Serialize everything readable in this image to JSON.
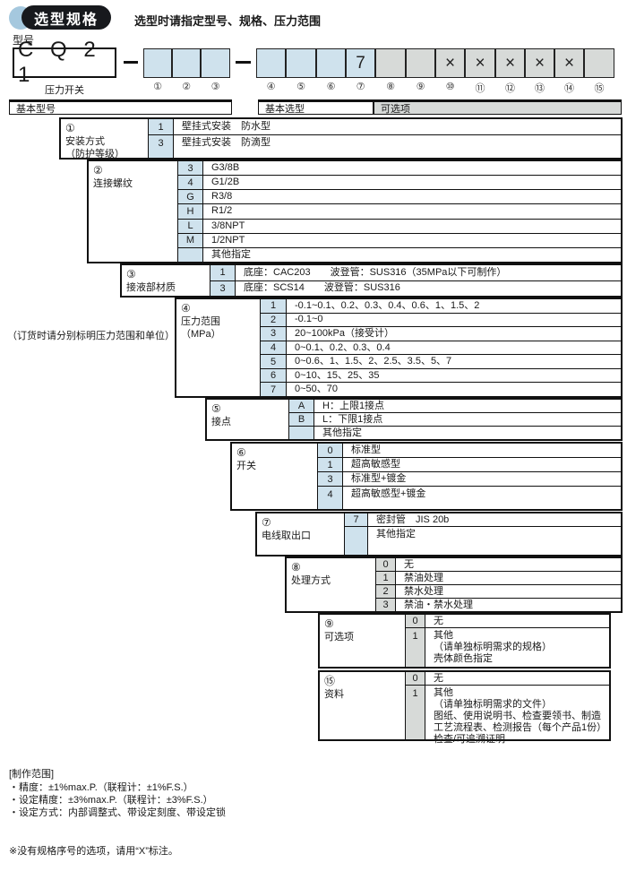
{
  "header": {
    "badge_label": "选型规格",
    "subtitle": "选型时请指定型号、规格、压力范围"
  },
  "model": {
    "field_label": "型号",
    "base_code": "CQ21",
    "base_caption": "压力开关",
    "slots": [
      {
        "num": "①",
        "fill": "blue",
        "text": ""
      },
      {
        "num": "②",
        "fill": "blue",
        "text": ""
      },
      {
        "num": "③",
        "fill": "blue",
        "text": ""
      },
      {
        "num": "④",
        "fill": "blue",
        "text": ""
      },
      {
        "num": "⑤",
        "fill": "blue",
        "text": ""
      },
      {
        "num": "⑥",
        "fill": "blue",
        "text": ""
      },
      {
        "num": "⑦",
        "fill": "blue",
        "text": "7"
      },
      {
        "num": "⑧",
        "fill": "gray",
        "text": ""
      },
      {
        "num": "⑨",
        "fill": "gray",
        "text": ""
      },
      {
        "num": "⑩",
        "fill": "gray",
        "text": "×"
      },
      {
        "num": "⑪",
        "fill": "gray",
        "text": "×"
      },
      {
        "num": "⑫",
        "fill": "gray",
        "text": "×"
      },
      {
        "num": "⑬",
        "fill": "gray",
        "text": "×"
      },
      {
        "num": "⑭",
        "fill": "gray",
        "text": "×"
      },
      {
        "num": "⑮",
        "fill": "gray",
        "text": ""
      }
    ]
  },
  "column_bars": {
    "left": "基本型号",
    "middle": "基本选型",
    "right": "可选项"
  },
  "order_note": "（订货时请分别标明压力范围和单位）",
  "sections": [
    {
      "key": "1",
      "num": "①",
      "label": "安装方式\n（防护等级）",
      "palette": "blue",
      "rows": [
        {
          "code": "1",
          "desc": "壁挂式安装　防水型"
        },
        {
          "code": "3",
          "desc": "壁挂式安装　防滴型"
        }
      ]
    },
    {
      "key": "2",
      "num": "②",
      "label": "连接螺纹",
      "palette": "blue",
      "rows": [
        {
          "code": "3",
          "desc": "G3/8B"
        },
        {
          "code": "4",
          "desc": "G1/2B"
        },
        {
          "code": "G",
          "desc": "R3/8"
        },
        {
          "code": "H",
          "desc": "R1/2"
        },
        {
          "code": "L",
          "desc": "3/8NPT"
        },
        {
          "code": "M",
          "desc": "1/2NPT"
        },
        {
          "code": "",
          "desc": "其他指定"
        }
      ]
    },
    {
      "key": "3",
      "num": "③",
      "label": "接液部材质",
      "palette": "blue",
      "rows": [
        {
          "code": "1",
          "desc": "底座：CAC203　　波登管：SUS316（35MPa以下可制作）"
        },
        {
          "code": "3",
          "desc": "底座：SCS14　　波登管：SUS316"
        }
      ]
    },
    {
      "key": "4",
      "num": "④",
      "label": "压力范围（MPa）",
      "palette": "blue",
      "rows": [
        {
          "code": "1",
          "desc": "-0.1~0.1、0.2、0.3、0.4、0.6、1、1.5、2"
        },
        {
          "code": "2",
          "desc": "-0.1~0"
        },
        {
          "code": "3",
          "desc": "20~100kPa（接受计）"
        },
        {
          "code": "4",
          "desc": "0~0.1、0.2、0.3、0.4"
        },
        {
          "code": "5",
          "desc": "0~0.6、1、1.5、2、2.5、3.5、5、7"
        },
        {
          "code": "6",
          "desc": "0~10、15、25、35"
        },
        {
          "code": "7",
          "desc": "0~50、70"
        }
      ]
    },
    {
      "key": "5",
      "num": "⑤",
      "label": "接点",
      "palette": "blue",
      "rows": [
        {
          "code": "A",
          "desc": "H：上限1接点"
        },
        {
          "code": "B",
          "desc": "L：下限1接点"
        },
        {
          "code": "",
          "desc": "其他指定"
        }
      ]
    },
    {
      "key": "6",
      "num": "⑥",
      "label": "开关",
      "palette": "blue",
      "rows": [
        {
          "code": "0",
          "desc": "标准型"
        },
        {
          "code": "1",
          "desc": "超高敏感型"
        },
        {
          "code": "3",
          "desc": "标准型+镀金"
        },
        {
          "code": "4",
          "desc": "超高敏感型+镀金"
        }
      ]
    },
    {
      "key": "7",
      "num": "⑦",
      "label": "电线取出口",
      "palette": "blue",
      "rows": [
        {
          "code": "7",
          "desc": "密封管　JIS 20b"
        },
        {
          "code": "",
          "desc": "其他指定"
        }
      ]
    },
    {
      "key": "8",
      "num": "⑧",
      "label": "处理方式",
      "palette": "gray",
      "rows": [
        {
          "code": "0",
          "desc": "无"
        },
        {
          "code": "1",
          "desc": "禁油处理"
        },
        {
          "code": "2",
          "desc": "禁水处理"
        },
        {
          "code": "3",
          "desc": "禁油・禁水处理"
        }
      ]
    },
    {
      "key": "9",
      "num": "⑨",
      "label": "可选项",
      "palette": "gray",
      "rows": [
        {
          "code": "0",
          "desc": "无"
        },
        {
          "code": "1",
          "desc": "其他\n（请单独标明需求的规格）\n壳体颜色指定"
        }
      ]
    },
    {
      "key": "15",
      "num": "⑮",
      "label": "资料",
      "palette": "gray",
      "rows": [
        {
          "code": "0",
          "desc": "无"
        },
        {
          "code": "1",
          "desc": "其他\n（请单独标明需求的文件）\n图纸、使用说明书、检查要领书、制造工艺流程表、检测报告（每个产品1份）检查/可追溯证明"
        }
      ]
    }
  ],
  "production_notes": {
    "title": "[制作范围]",
    "lines": [
      "・精度：±1%max.P.（联程计：±1%F.S.）",
      "・设定精度：±3%max.P.（联程计：±3%F.S.）",
      "・设定方式：内部调整式、带设定刻度、带设定锁"
    ]
  },
  "footnote": "※没有规格序号的选项，请用“X”标注。",
  "colors": {
    "accent_blue": "#cfe2ed",
    "accent_gray": "#d7dad8",
    "badge_bg": "#17191d",
    "badge_circle": "#a5c8de",
    "border": "#111111"
  }
}
